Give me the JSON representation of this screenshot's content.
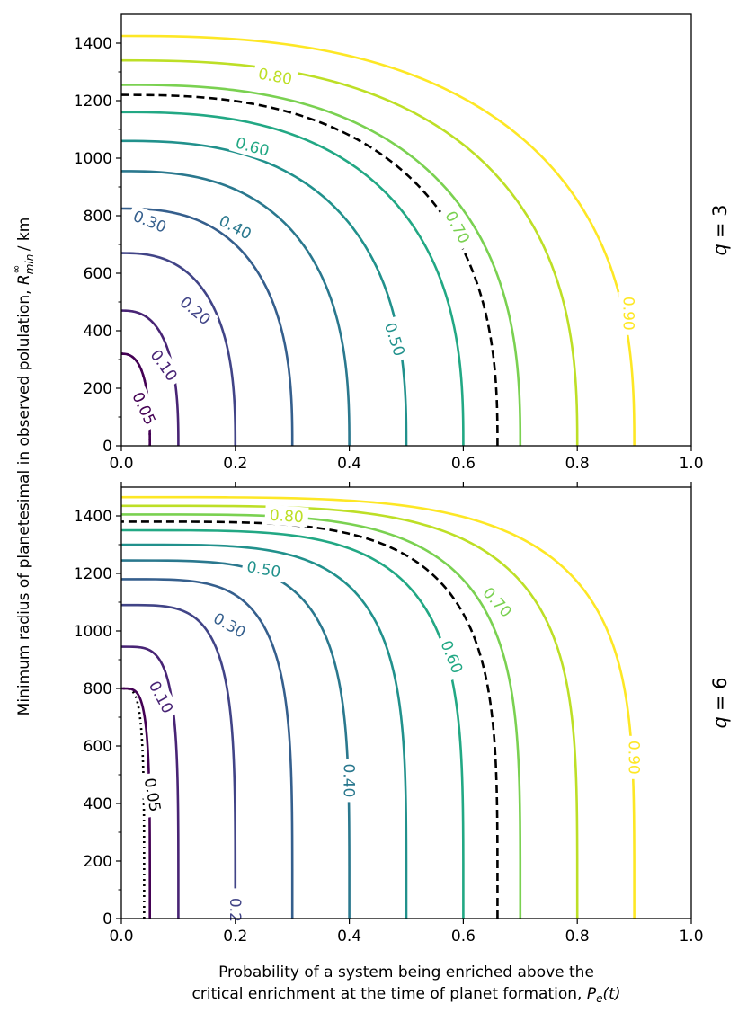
{
  "chart_data": [
    {
      "type": "line",
      "subtype": "contour",
      "panel_label_prefix": "q",
      "panel_label_value": "= 3",
      "q": 3,
      "xlim": [
        0.0,
        1.0
      ],
      "ylim": [
        0,
        1500
      ],
      "xticks": [
        "0.0",
        "0.2",
        "0.4",
        "0.6",
        "0.8",
        "1.0"
      ],
      "yticks": [
        "0",
        "200",
        "400",
        "600",
        "800",
        "1000",
        "1200",
        "1400"
      ],
      "series": [
        {
          "name": "0.05",
          "label": "0.05",
          "color": "#440154",
          "style": "dotted",
          "x_bottom": 0.05,
          "y_top": 320,
          "label_pos": {
            "x": 0.04,
            "y": 130,
            "angle": 65
          }
        },
        {
          "name": "0.05",
          "label": "",
          "color": "#440154",
          "style": "solid",
          "x_bottom": 0.05,
          "y_top": 320,
          "label_pos": null
        },
        {
          "name": "0.10",
          "label": "0.10",
          "color": "#482475",
          "style": "solid",
          "x_bottom": 0.1,
          "y_top": 470,
          "label_pos": {
            "x": 0.075,
            "y": 280,
            "angle": 55
          }
        },
        {
          "name": "0.20",
          "label": "0.20",
          "color": "#414487",
          "style": "solid",
          "x_bottom": 0.2,
          "y_top": 670,
          "label_pos": {
            "x": 0.13,
            "y": 470,
            "angle": 40
          }
        },
        {
          "name": "0.30",
          "label": "0.30",
          "color": "#355f8d",
          "style": "solid",
          "x_bottom": 0.3,
          "y_top": 825,
          "label_pos": {
            "x": 0.05,
            "y": 780,
            "angle": 22
          }
        },
        {
          "name": "0.40",
          "label": "0.40",
          "color": "#2a788e",
          "style": "solid",
          "x_bottom": 0.4,
          "y_top": 955,
          "label_pos": {
            "x": 0.2,
            "y": 760,
            "angle": 28
          }
        },
        {
          "name": "0.50",
          "label": "0.50",
          "color": "#21918c",
          "style": "solid",
          "x_bottom": 0.5,
          "y_top": 1060,
          "label_pos": {
            "x": 0.48,
            "y": 370,
            "angle": 72
          }
        },
        {
          "name": "0.60",
          "label": "0.60",
          "color": "#22a884",
          "style": "solid",
          "x_bottom": 0.6,
          "y_top": 1160,
          "label_pos": {
            "x": 0.23,
            "y": 1040,
            "angle": 16
          }
        },
        {
          "name": "critical",
          "label": "",
          "color": "#000000",
          "style": "dashed",
          "x_bottom": 0.66,
          "y_top": 1220,
          "label_pos": null
        },
        {
          "name": "0.70",
          "label": "0.70",
          "color": "#7ad151",
          "style": "solid",
          "x_bottom": 0.7,
          "y_top": 1255,
          "label_pos": {
            "x": 0.59,
            "y": 760,
            "angle": 62
          }
        },
        {
          "name": "0.80",
          "label": "0.80",
          "color": "#bddf26",
          "style": "solid",
          "x_bottom": 0.8,
          "y_top": 1340,
          "label_pos": {
            "x": 0.27,
            "y": 1285,
            "angle": 10
          }
        },
        {
          "name": "0.90",
          "label": "0.90",
          "color": "#fde725",
          "style": "solid",
          "x_bottom": 0.9,
          "y_top": 1425,
          "label_pos": {
            "x": 0.89,
            "y": 460,
            "angle": 90
          }
        }
      ]
    },
    {
      "type": "line",
      "subtype": "contour",
      "panel_label_prefix": "q",
      "panel_label_value": "= 6",
      "q": 6,
      "xlim": [
        0.0,
        1.0
      ],
      "ylim": [
        0,
        1500
      ],
      "xticks": [
        "0.0",
        "0.2",
        "0.4",
        "0.6",
        "0.8",
        "1.0"
      ],
      "yticks": [
        "0",
        "200",
        "400",
        "600",
        "800",
        "1000",
        "1200",
        "1400"
      ],
      "series": [
        {
          "name": "0.05",
          "label": "0.05",
          "color": "#000000",
          "style": "dotted",
          "x_bottom": 0.04,
          "y_top": 800,
          "label_pos": {
            "x": 0.055,
            "y": 430,
            "angle": 80
          }
        },
        {
          "name": "0.05",
          "label": "",
          "color": "#440154",
          "style": "solid",
          "x_bottom": 0.05,
          "y_top": 800,
          "label_pos": null
        },
        {
          "name": "0.10",
          "label": "0.10",
          "color": "#482475",
          "style": "solid",
          "x_bottom": 0.1,
          "y_top": 945,
          "label_pos": {
            "x": 0.07,
            "y": 770,
            "angle": 62
          }
        },
        {
          "name": "0.20",
          "label": "0.2",
          "color": "#414487",
          "style": "solid",
          "x_bottom": 0.2,
          "y_top": 1090,
          "label_pos": {
            "x": 0.2,
            "y": 30,
            "angle": 90
          }
        },
        {
          "name": "0.30",
          "label": "0.30",
          "color": "#355f8d",
          "style": "solid",
          "x_bottom": 0.3,
          "y_top": 1180,
          "label_pos": {
            "x": 0.19,
            "y": 1020,
            "angle": 30
          }
        },
        {
          "name": "0.40",
          "label": "0.40",
          "color": "#2a788e",
          "style": "solid",
          "x_bottom": 0.4,
          "y_top": 1245,
          "label_pos": {
            "x": 0.4,
            "y": 480,
            "angle": 90
          }
        },
        {
          "name": "0.50",
          "label": "0.50",
          "color": "#21918c",
          "style": "solid",
          "x_bottom": 0.5,
          "y_top": 1300,
          "label_pos": {
            "x": 0.25,
            "y": 1215,
            "angle": 10
          }
        },
        {
          "name": "0.60",
          "label": "0.60",
          "color": "#22a884",
          "style": "solid",
          "x_bottom": 0.6,
          "y_top": 1350,
          "label_pos": {
            "x": 0.58,
            "y": 910,
            "angle": 68
          }
        },
        {
          "name": "critical",
          "label": "",
          "color": "#000000",
          "style": "dashed",
          "x_bottom": 0.66,
          "y_top": 1380,
          "label_pos": null
        },
        {
          "name": "0.70",
          "label": "0.70",
          "color": "#7ad151",
          "style": "solid",
          "x_bottom": 0.7,
          "y_top": 1405,
          "label_pos": {
            "x": 0.66,
            "y": 1100,
            "angle": 48
          }
        },
        {
          "name": "0.80",
          "label": "0.80",
          "color": "#bddf26",
          "style": "solid",
          "x_bottom": 0.8,
          "y_top": 1435,
          "label_pos": {
            "x": 0.29,
            "y": 1400,
            "angle": 4
          }
        },
        {
          "name": "0.90",
          "label": "0.90",
          "color": "#fde725",
          "style": "solid",
          "x_bottom": 0.9,
          "y_top": 1465,
          "label_pos": {
            "x": 0.9,
            "y": 560,
            "angle": 90
          }
        }
      ]
    }
  ],
  "axes": {
    "ylabel_main": "Minimum radius of planetesimal in observed polulation, ",
    "ylabel_symbol": "R",
    "ylabel_sub": "min",
    "ylabel_sup": "∞",
    "ylabel_unit": " / km",
    "xlabel_line1": "Probability of a system being enriched above the",
    "xlabel_line2": "critical enrichment at the time of planet formation, ",
    "xlabel_symbol": "P",
    "xlabel_sub": "e",
    "xlabel_arg": "(t)"
  },
  "colors": {
    "frame": "#000000",
    "background": "#ffffff"
  }
}
